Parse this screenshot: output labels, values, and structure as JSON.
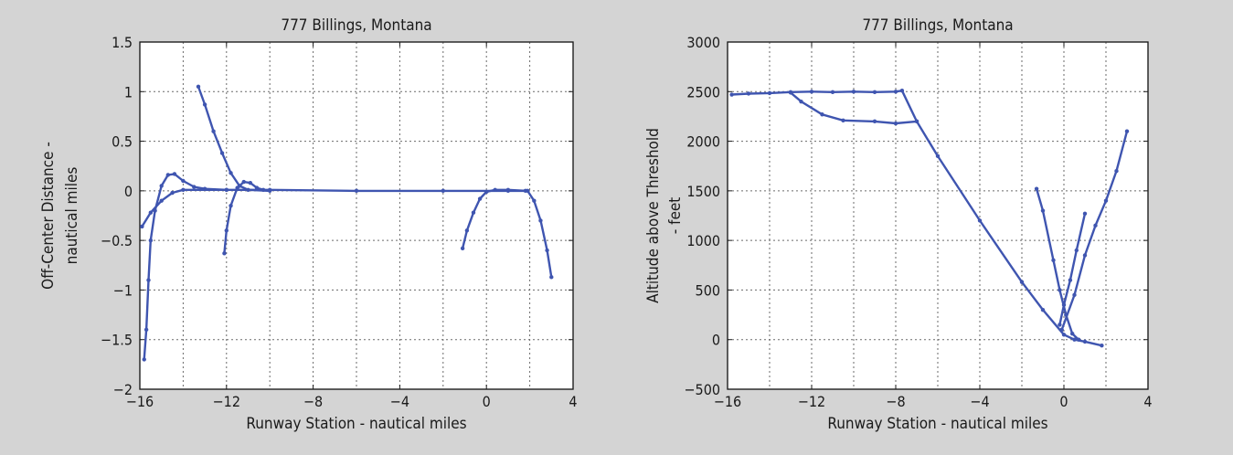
{
  "colors": {
    "background": "#d4d4d4",
    "plot_background": "#ffffff",
    "series": "#3f55b0"
  },
  "chart_data": [
    {
      "type": "scatter",
      "title": "777 Billings, Montana",
      "xlabel": "Runway Station - nautical miles",
      "ylabel": [
        "Off-Center Distance -",
        "nautical miles"
      ],
      "xlim": [
        -16,
        4
      ],
      "ylim": [
        -2,
        1.5
      ],
      "xticks": [
        -16,
        -12,
        -8,
        -4,
        0,
        4
      ],
      "xtick_labels": [
        "−16",
        "−12",
        "−8",
        "−4",
        "0",
        "4"
      ],
      "xgrid": [
        -14,
        -12,
        -10,
        -8,
        -6,
        -4,
        -2,
        0,
        2
      ],
      "yticks": [
        1.5,
        1,
        0.5,
        0,
        -0.5,
        -1,
        -1.5,
        -2
      ],
      "ytick_labels": [
        "1.5",
        "1",
        "0.5",
        "0",
        "−0.5",
        "−1",
        "−1.5",
        "−2"
      ],
      "grid": true,
      "series": [
        {
          "points": [
            [
              -15.8,
              -1.7
            ],
            [
              -15.7,
              -1.4
            ],
            [
              -15.6,
              -0.9
            ],
            [
              -15.5,
              -0.5
            ],
            [
              -15.3,
              -0.2
            ],
            [
              -15.0,
              0.05
            ],
            [
              -14.7,
              0.16
            ],
            [
              -14.4,
              0.17
            ],
            [
              -14.0,
              0.1
            ],
            [
              -13.5,
              0.04
            ],
            [
              -13.0,
              0.02
            ],
            [
              -12.0,
              0.01
            ]
          ]
        },
        {
          "points": [
            [
              -15.9,
              -0.36
            ],
            [
              -15.5,
              -0.22
            ],
            [
              -15.0,
              -0.1
            ],
            [
              -14.5,
              -0.02
            ],
            [
              -14.0,
              0.01
            ],
            [
              -12.0,
              0.01
            ],
            [
              -10.0,
              0.01
            ],
            [
              -6.0,
              0.0
            ],
            [
              -2.0,
              0.0
            ],
            [
              1.0,
              0.0
            ],
            [
              1.8,
              0.0
            ]
          ]
        },
        {
          "points": [
            [
              -13.3,
              1.05
            ],
            [
              -13.0,
              0.87
            ],
            [
              -12.6,
              0.6
            ],
            [
              -12.2,
              0.38
            ],
            [
              -11.8,
              0.18
            ],
            [
              -11.4,
              0.05
            ],
            [
              -11.0,
              0.01
            ],
            [
              -10.0,
              0.0
            ]
          ]
        },
        {
          "points": [
            [
              -12.1,
              -0.63
            ],
            [
              -12.0,
              -0.4
            ],
            [
              -11.8,
              -0.15
            ],
            [
              -11.5,
              0.03
            ],
            [
              -11.2,
              0.09
            ],
            [
              -10.9,
              0.08
            ],
            [
              -10.6,
              0.03
            ],
            [
              -10.3,
              0.01
            ]
          ]
        },
        {
          "points": [
            [
              -1.1,
              -0.58
            ],
            [
              -0.9,
              -0.4
            ],
            [
              -0.6,
              -0.22
            ],
            [
              -0.3,
              -0.08
            ],
            [
              0.0,
              -0.01
            ],
            [
              0.4,
              0.01
            ],
            [
              1.0,
              0.01
            ],
            [
              1.9,
              0.0
            ],
            [
              2.2,
              -0.1
            ],
            [
              2.5,
              -0.3
            ],
            [
              2.8,
              -0.6
            ],
            [
              3.0,
              -0.87
            ]
          ]
        }
      ]
    },
    {
      "type": "scatter",
      "title": "777 Billings, Montana",
      "xlabel": "Runway Station - nautical miles",
      "ylabel": [
        "Altitude above Threshold",
        "- feet"
      ],
      "xlim": [
        -16,
        4
      ],
      "ylim": [
        -500,
        3000
      ],
      "xticks": [
        -16,
        -12,
        -8,
        -4,
        0,
        4
      ],
      "xtick_labels": [
        "−16",
        "−12",
        "−8",
        "−4",
        "0",
        "4"
      ],
      "xgrid": [
        -14,
        -12,
        -10,
        -8,
        -6,
        -4,
        -2,
        0,
        2
      ],
      "yticks": [
        3000,
        2500,
        2000,
        1500,
        1000,
        500,
        0,
        -500
      ],
      "ytick_labels": [
        "3000",
        "2500",
        "2000",
        "1500",
        "1000",
        "500",
        "0",
        "−500"
      ],
      "grid": true,
      "series": [
        {
          "points": [
            [
              -15.8,
              2470
            ],
            [
              -15.0,
              2480
            ],
            [
              -14.0,
              2485
            ],
            [
              -13.0,
              2495
            ],
            [
              -12.0,
              2500
            ],
            [
              -11.0,
              2495
            ],
            [
              -10.0,
              2500
            ],
            [
              -9.0,
              2495
            ],
            [
              -8.0,
              2500
            ],
            [
              -7.7,
              2510
            ],
            [
              -7.0,
              2200
            ],
            [
              -6.0,
              1850
            ],
            [
              -4.0,
              1200
            ],
            [
              -2.0,
              580
            ],
            [
              -1.0,
              300
            ],
            [
              0.0,
              50
            ],
            [
              0.5,
              0
            ],
            [
              1.0,
              -20
            ],
            [
              1.8,
              -60
            ]
          ]
        },
        {
          "points": [
            [
              -13.0,
              2490
            ],
            [
              -12.5,
              2400
            ],
            [
              -11.5,
              2270
            ],
            [
              -10.5,
              2210
            ],
            [
              -9.0,
              2200
            ],
            [
              -8.0,
              2180
            ],
            [
              -7.0,
              2200
            ]
          ]
        },
        {
          "points": [
            [
              -1.3,
              1520
            ],
            [
              -1.0,
              1300
            ],
            [
              -0.5,
              800
            ],
            [
              -0.2,
              500
            ],
            [
              0.1,
              250
            ],
            [
              0.4,
              60
            ],
            [
              0.7,
              0
            ]
          ]
        },
        {
          "points": [
            [
              -0.2,
              150
            ],
            [
              0.0,
              350
            ],
            [
              0.3,
              600
            ],
            [
              0.6,
              900
            ],
            [
              1.0,
              1270
            ]
          ]
        },
        {
          "points": [
            [
              -0.1,
              100
            ],
            [
              0.5,
              450
            ],
            [
              1.0,
              850
            ],
            [
              1.5,
              1150
            ],
            [
              2.0,
              1400
            ],
            [
              2.5,
              1700
            ],
            [
              3.0,
              2100
            ]
          ]
        }
      ]
    }
  ]
}
